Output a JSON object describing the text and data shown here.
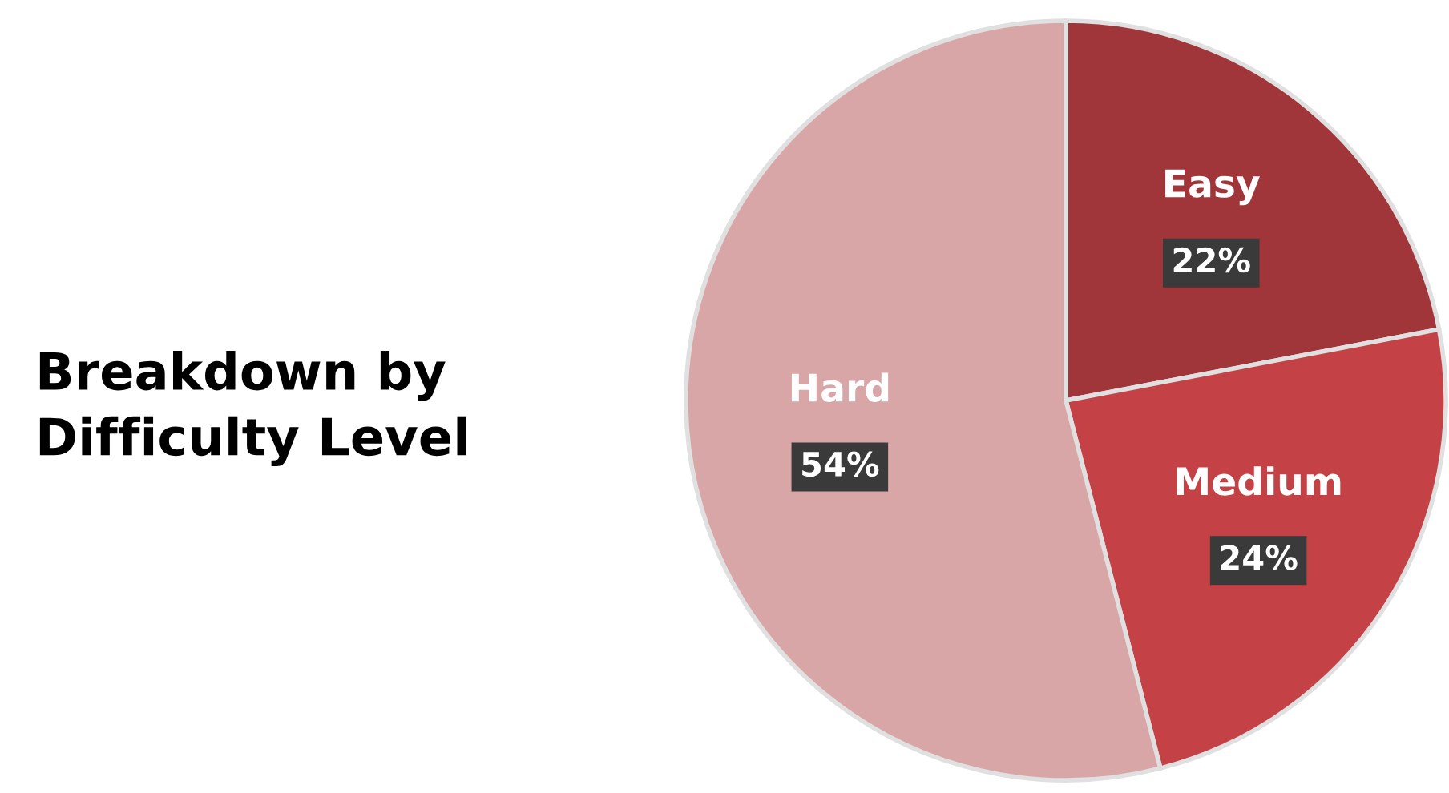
{
  "chart_data": {
    "type": "pie",
    "title": "Breakdown by\nDifficulty Level",
    "categories": [
      "Easy",
      "Medium",
      "Hard"
    ],
    "values": [
      22,
      24,
      54
    ],
    "colors": [
      "#a0353a",
      "#c44246",
      "#d9a6a7"
    ],
    "value_labels": [
      "22%",
      "24%",
      "54%"
    ]
  }
}
